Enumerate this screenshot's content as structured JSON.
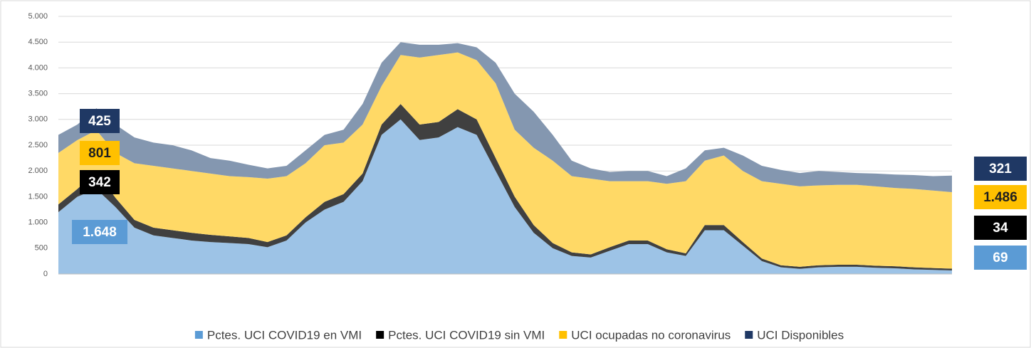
{
  "chart_data": {
    "type": "stacked-area",
    "categories": [
      null,
      null,
      null,
      null,
      null,
      null,
      null,
      null,
      null,
      null,
      null,
      null,
      null,
      null,
      null,
      null,
      null,
      null,
      null,
      null,
      null,
      null,
      null,
      null,
      null,
      null,
      null,
      null,
      null,
      null,
      null,
      null,
      null,
      null,
      null,
      null,
      null,
      null,
      null,
      null,
      null,
      null,
      null,
      null,
      null,
      null,
      null,
      null
    ],
    "ylim": [
      0,
      5000
    ],
    "yticks": [
      0,
      500,
      {
        "value": 1000,
        "label": "1.000"
      },
      {
        "value": 1500,
        "label": "1.500"
      },
      {
        "value": 2000,
        "label": "2.000"
      },
      {
        "value": 2500,
        "label": "2.500"
      },
      {
        "value": 3000,
        "label": "3.000"
      },
      {
        "value": 3500,
        "label": "3.500"
      },
      {
        "value": 4000,
        "label": "4.000"
      },
      {
        "value": 4500,
        "label": "4.500"
      },
      {
        "value": 5000,
        "label": "5.000"
      }
    ],
    "grid": true,
    "legend": "bottom",
    "series": [
      {
        "name": "Pctes. UCI COVID19 en VMI",
        "color": "#9dc3e6",
        "legend_color": "#5b9bd5",
        "label_color": "#5b9bd5",
        "values": [
          1200,
          1500,
          1648,
          1300,
          900,
          750,
          700,
          650,
          620,
          600,
          580,
          520,
          650,
          1000,
          1250,
          1400,
          1800,
          2700,
          3000,
          2600,
          2650,
          2850,
          2700,
          2000,
          1300,
          800,
          500,
          350,
          320,
          450,
          580,
          580,
          420,
          350,
          850,
          850,
          550,
          250,
          130,
          100,
          130,
          140,
          140,
          120,
          110,
          90,
          80,
          69
        ],
        "value_labels": [
          null,
          null,
          "1.648",
          null,
          null,
          null,
          null,
          null,
          null,
          null,
          null,
          null,
          null,
          null,
          null,
          null,
          null,
          null,
          null,
          null,
          null,
          null,
          null,
          null,
          null,
          null,
          null,
          null,
          null,
          null,
          null,
          null,
          null,
          null,
          null,
          null,
          null,
          null,
          null,
          null,
          null,
          null,
          null,
          null,
          null,
          null,
          null,
          "69"
        ]
      },
      {
        "name": "Pctes. UCI COVID19 sin VMI",
        "color": "#404040",
        "legend_color": "#000000",
        "label_color": "#000000",
        "values": [
          150,
          150,
          342,
          180,
          150,
          150,
          150,
          150,
          140,
          130,
          120,
          100,
          100,
          100,
          150,
          150,
          150,
          200,
          300,
          300,
          300,
          350,
          300,
          250,
          200,
          150,
          100,
          70,
          60,
          70,
          70,
          70,
          60,
          50,
          100,
          100,
          70,
          50,
          40,
          40,
          40,
          40,
          40,
          40,
          40,
          40,
          35,
          34
        ],
        "value_labels": [
          null,
          null,
          "342",
          null,
          null,
          null,
          null,
          null,
          null,
          null,
          null,
          null,
          null,
          null,
          null,
          null,
          null,
          null,
          null,
          null,
          null,
          null,
          null,
          null,
          null,
          null,
          null,
          null,
          null,
          null,
          null,
          null,
          null,
          null,
          null,
          null,
          null,
          null,
          null,
          null,
          null,
          null,
          null,
          null,
          null,
          null,
          null,
          "34"
        ]
      },
      {
        "name": "UCI ocupadas no coronavirus",
        "color": "#ffd966",
        "legend_color": "#ffc000",
        "label_color": "#ffc000",
        "values": [
          1000,
          950,
          801,
          870,
          1100,
          1200,
          1200,
          1200,
          1190,
          1170,
          1180,
          1230,
          1150,
          1050,
          1100,
          1000,
          950,
          750,
          950,
          1300,
          1300,
          1100,
          1150,
          1450,
          1300,
          1500,
          1600,
          1480,
          1470,
          1280,
          1150,
          1150,
          1270,
          1400,
          1250,
          1350,
          1380,
          1500,
          1580,
          1560,
          1550,
          1550,
          1550,
          1540,
          1520,
          1520,
          1505,
          1486
        ],
        "value_labels": [
          null,
          null,
          "801",
          null,
          null,
          null,
          null,
          null,
          null,
          null,
          null,
          null,
          null,
          null,
          null,
          null,
          null,
          null,
          null,
          null,
          null,
          null,
          null,
          null,
          null,
          null,
          null,
          null,
          null,
          null,
          null,
          null,
          null,
          null,
          null,
          null,
          null,
          null,
          null,
          null,
          null,
          null,
          null,
          null,
          null,
          null,
          null,
          "1.486"
        ]
      },
      {
        "name": "UCI Disponibles",
        "color": "#8497b0",
        "legend_color": "#1f3864",
        "label_color": "#1f3864",
        "values": [
          350,
          300,
          425,
          550,
          500,
          450,
          450,
          400,
          300,
          300,
          240,
          200,
          200,
          250,
          200,
          250,
          400,
          450,
          250,
          250,
          200,
          180,
          250,
          400,
          700,
          700,
          500,
          300,
          200,
          180,
          200,
          200,
          150,
          250,
          200,
          150,
          300,
          300,
          270,
          260,
          280,
          250,
          230,
          250,
          260,
          270,
          280,
          321
        ],
        "value_labels": [
          null,
          null,
          "425",
          null,
          null,
          null,
          null,
          null,
          null,
          null,
          null,
          null,
          null,
          null,
          null,
          null,
          null,
          null,
          null,
          null,
          null,
          null,
          null,
          null,
          null,
          null,
          null,
          null,
          null,
          null,
          null,
          null,
          null,
          null,
          null,
          null,
          null,
          null,
          null,
          null,
          null,
          null,
          null,
          null,
          null,
          null,
          null,
          "321"
        ]
      }
    ]
  }
}
